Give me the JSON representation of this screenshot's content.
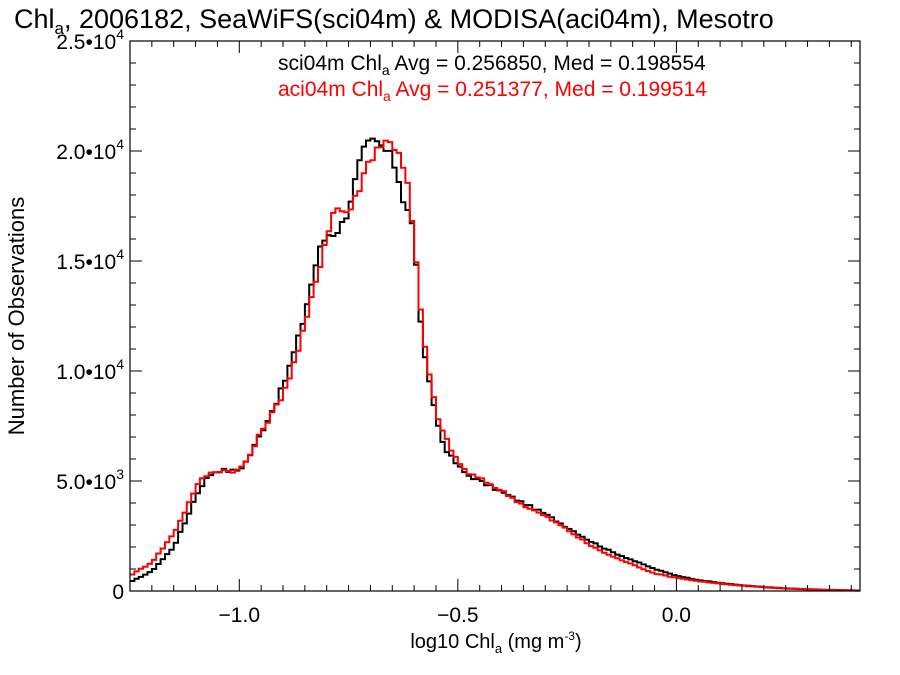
{
  "chart_data": {
    "type": "line",
    "title": {
      "prefix": "Chl",
      "sub": "a",
      "rest": ", 2006182, SeaWiFS(sci04m) & MODISA(aci04m), Mesotro"
    },
    "xlabel": {
      "prefix": "log10 Chl",
      "sub": "a",
      "mid": " (mg m",
      "sup": "-3",
      "suffix": ")"
    },
    "ylabel": "Number of Observations",
    "xlim": [
      -1.25,
      0.42
    ],
    "ylim": [
      0,
      25000
    ],
    "x_ticks": [
      {
        "value": -1.0,
        "label": "−1.0"
      },
      {
        "value": -0.5,
        "label": "−0.5"
      },
      {
        "value": 0.0,
        "label": "0.0"
      }
    ],
    "y_ticks": [
      {
        "value": 0,
        "mantissa": "0",
        "exponent": ""
      },
      {
        "value": 5000,
        "mantissa": "5.0•10",
        "exponent": "3"
      },
      {
        "value": 10000,
        "mantissa": "1.0•10",
        "exponent": "4"
      },
      {
        "value": 15000,
        "mantissa": "1.5•10",
        "exponent": "4"
      },
      {
        "value": 20000,
        "mantissa": "2.0•10",
        "exponent": "4"
      },
      {
        "value": 25000,
        "mantissa": "2.5•10",
        "exponent": "4"
      }
    ],
    "x_minor_step": 0.05,
    "y_minor_step": 1000,
    "annotations": [
      {
        "color": "#000000",
        "prefix": "sci04m Chl",
        "sub": "a",
        "rest": " Avg = 0.256850, Med = 0.198554"
      },
      {
        "color": "#ff0000",
        "prefix": "aci04m Chl",
        "sub": "a",
        "rest": " Avg = 0.251377, Med = 0.199514"
      }
    ],
    "grid": false,
    "step_width": 0.01,
    "series": [
      {
        "color": "#000000",
        "points": [
          [
            -1.25,
            400
          ],
          [
            -1.2,
            900
          ],
          [
            -1.15,
            2000
          ],
          [
            -1.12,
            3300
          ],
          [
            -1.1,
            4300
          ],
          [
            -1.08,
            5000
          ],
          [
            -1.06,
            5400
          ],
          [
            -1.04,
            5500
          ],
          [
            -1.02,
            5450
          ],
          [
            -1.0,
            5500
          ],
          [
            -0.98,
            6000
          ],
          [
            -0.96,
            6800
          ],
          [
            -0.94,
            7600
          ],
          [
            -0.92,
            8400
          ],
          [
            -0.9,
            9300
          ],
          [
            -0.88,
            10500
          ],
          [
            -0.86,
            11800
          ],
          [
            -0.84,
            13500
          ],
          [
            -0.82,
            15300
          ],
          [
            -0.8,
            16200
          ],
          [
            -0.78,
            16300
          ],
          [
            -0.76,
            16800
          ],
          [
            -0.74,
            18200
          ],
          [
            -0.72,
            19800
          ],
          [
            -0.7,
            20400
          ],
          [
            -0.68,
            20300
          ],
          [
            -0.66,
            19900
          ],
          [
            -0.64,
            19200
          ],
          [
            -0.63,
            18200
          ],
          [
            -0.62,
            17500
          ],
          [
            -0.61,
            17300
          ],
          [
            -0.6,
            16000
          ],
          [
            -0.59,
            13500
          ],
          [
            -0.58,
            11200
          ],
          [
            -0.57,
            9800
          ],
          [
            -0.56,
            9000
          ],
          [
            -0.55,
            8000
          ],
          [
            -0.54,
            7000
          ],
          [
            -0.52,
            6200
          ],
          [
            -0.5,
            5700
          ],
          [
            -0.48,
            5300
          ],
          [
            -0.45,
            5000
          ],
          [
            -0.42,
            4700
          ],
          [
            -0.38,
            4300
          ],
          [
            -0.35,
            4000
          ],
          [
            -0.3,
            3500
          ],
          [
            -0.25,
            2900
          ],
          [
            -0.2,
            2300
          ],
          [
            -0.15,
            1800
          ],
          [
            -0.1,
            1400
          ],
          [
            -0.05,
            1000
          ],
          [
            0.0,
            700
          ],
          [
            0.05,
            500
          ],
          [
            0.1,
            360
          ],
          [
            0.15,
            260
          ],
          [
            0.2,
            180
          ],
          [
            0.25,
            120
          ],
          [
            0.3,
            80
          ],
          [
            0.35,
            50
          ],
          [
            0.4,
            30
          ],
          [
            0.42,
            20
          ]
        ]
      },
      {
        "color": "#ff0000",
        "points": [
          [
            -1.25,
            700
          ],
          [
            -1.2,
            1300
          ],
          [
            -1.15,
            2600
          ],
          [
            -1.12,
            3800
          ],
          [
            -1.1,
            4700
          ],
          [
            -1.08,
            5200
          ],
          [
            -1.06,
            5400
          ],
          [
            -1.04,
            5500
          ],
          [
            -1.02,
            5450
          ],
          [
            -1.0,
            5500
          ],
          [
            -0.98,
            6000
          ],
          [
            -0.96,
            6800
          ],
          [
            -0.94,
            7600
          ],
          [
            -0.92,
            8200
          ],
          [
            -0.9,
            9000
          ],
          [
            -0.88,
            10000
          ],
          [
            -0.86,
            11300
          ],
          [
            -0.84,
            12800
          ],
          [
            -0.82,
            14500
          ],
          [
            -0.8,
            16200
          ],
          [
            -0.78,
            17500
          ],
          [
            -0.76,
            17200
          ],
          [
            -0.74,
            17500
          ],
          [
            -0.72,
            18700
          ],
          [
            -0.7,
            19700
          ],
          [
            -0.68,
            20300
          ],
          [
            -0.66,
            20400
          ],
          [
            -0.64,
            20200
          ],
          [
            -0.63,
            19800
          ],
          [
            -0.62,
            19000
          ],
          [
            -0.61,
            17800
          ],
          [
            -0.6,
            15800
          ],
          [
            -0.59,
            13800
          ],
          [
            -0.58,
            11800
          ],
          [
            -0.57,
            10300
          ],
          [
            -0.56,
            9200
          ],
          [
            -0.55,
            8300
          ],
          [
            -0.54,
            7500
          ],
          [
            -0.52,
            6600
          ],
          [
            -0.5,
            5900
          ],
          [
            -0.48,
            5400
          ],
          [
            -0.45,
            5100
          ],
          [
            -0.42,
            4800
          ],
          [
            -0.38,
            4300
          ],
          [
            -0.35,
            3900
          ],
          [
            -0.3,
            3400
          ],
          [
            -0.25,
            2800
          ],
          [
            -0.2,
            2100
          ],
          [
            -0.15,
            1600
          ],
          [
            -0.1,
            1200
          ],
          [
            -0.05,
            800
          ],
          [
            0.0,
            600
          ],
          [
            0.05,
            450
          ],
          [
            0.1,
            330
          ],
          [
            0.15,
            240
          ],
          [
            0.2,
            170
          ],
          [
            0.25,
            110
          ],
          [
            0.3,
            75
          ],
          [
            0.35,
            45
          ],
          [
            0.4,
            25
          ],
          [
            0.42,
            15
          ]
        ]
      }
    ]
  }
}
